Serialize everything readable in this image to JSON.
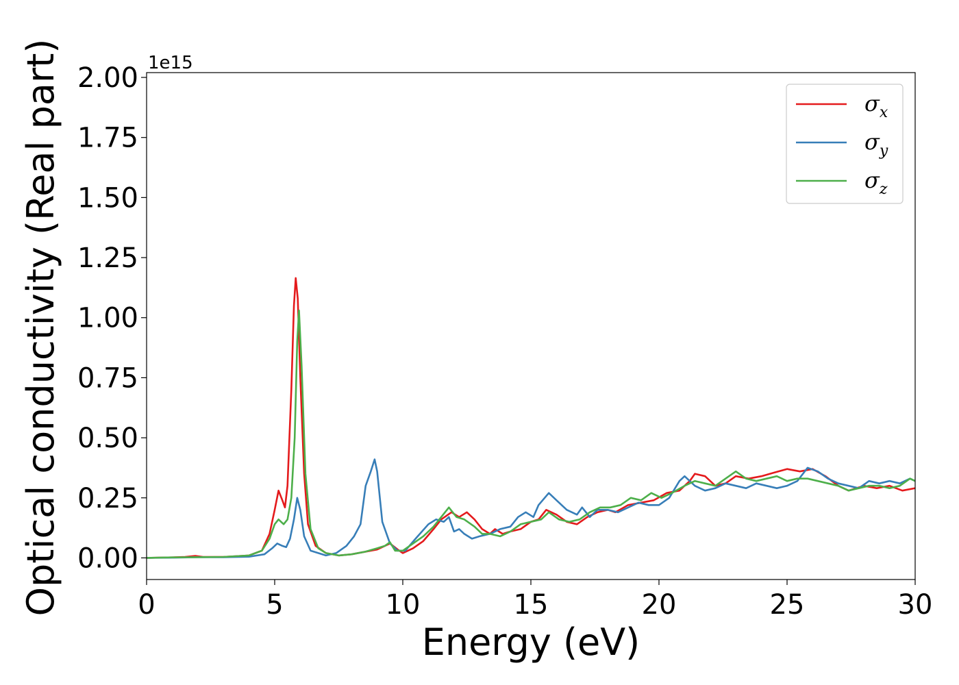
{
  "chart_data": {
    "type": "line",
    "title": "",
    "xlabel": "Energy (eV)",
    "ylabel": "Optical conductivity (Real part)",
    "offset_label": "1e15",
    "xlim": [
      0,
      30
    ],
    "ylim": [
      -0.09,
      2.02
    ],
    "xticks": [
      0,
      5,
      10,
      15,
      20,
      25,
      30
    ],
    "xtick_labels": [
      "0",
      "5",
      "10",
      "15",
      "20",
      "25",
      "30"
    ],
    "yticks": [
      0,
      0.25,
      0.5,
      0.75,
      1.0,
      1.25,
      1.5,
      1.75,
      2.0
    ],
    "ytick_labels": [
      "0.00",
      "0.25",
      "0.50",
      "0.75",
      "1.00",
      "1.25",
      "1.50",
      "1.75",
      "2.00"
    ],
    "grid": false,
    "legend_position": "top-right",
    "series": [
      {
        "name": "σ",
        "subscript": "x",
        "color": "#e41a1c",
        "points": [
          [
            0,
            0
          ],
          [
            1,
            0.002
          ],
          [
            1.5,
            0.004
          ],
          [
            1.9,
            0.008
          ],
          [
            2.2,
            0.004
          ],
          [
            3,
            0.004
          ],
          [
            4,
            0.01
          ],
          [
            4.5,
            0.03
          ],
          [
            4.8,
            0.1
          ],
          [
            5.0,
            0.2
          ],
          [
            5.15,
            0.28
          ],
          [
            5.3,
            0.24
          ],
          [
            5.4,
            0.21
          ],
          [
            5.5,
            0.3
          ],
          [
            5.65,
            0.7
          ],
          [
            5.75,
            1.05
          ],
          [
            5.82,
            1.165
          ],
          [
            5.9,
            1.08
          ],
          [
            6.0,
            0.75
          ],
          [
            6.15,
            0.35
          ],
          [
            6.3,
            0.14
          ],
          [
            6.6,
            0.05
          ],
          [
            7,
            0.02
          ],
          [
            7.5,
            0.01
          ],
          [
            8,
            0.015
          ],
          [
            8.5,
            0.025
          ],
          [
            9,
            0.035
          ],
          [
            9.5,
            0.06
          ],
          [
            9.8,
            0.035
          ],
          [
            10,
            0.02
          ],
          [
            10.4,
            0.04
          ],
          [
            10.8,
            0.07
          ],
          [
            11.2,
            0.12
          ],
          [
            11.5,
            0.16
          ],
          [
            11.9,
            0.19
          ],
          [
            12.2,
            0.17
          ],
          [
            12.5,
            0.19
          ],
          [
            12.8,
            0.16
          ],
          [
            13.1,
            0.12
          ],
          [
            13.4,
            0.1
          ],
          [
            13.6,
            0.12
          ],
          [
            13.9,
            0.1
          ],
          [
            14.2,
            0.11
          ],
          [
            14.6,
            0.12
          ],
          [
            15,
            0.15
          ],
          [
            15.3,
            0.16
          ],
          [
            15.6,
            0.2
          ],
          [
            16,
            0.18
          ],
          [
            16.4,
            0.15
          ],
          [
            16.8,
            0.14
          ],
          [
            17.2,
            0.17
          ],
          [
            17.6,
            0.19
          ],
          [
            18,
            0.2
          ],
          [
            18.3,
            0.19
          ],
          [
            18.8,
            0.22
          ],
          [
            19.3,
            0.23
          ],
          [
            19.8,
            0.24
          ],
          [
            20.3,
            0.27
          ],
          [
            20.8,
            0.28
          ],
          [
            21.2,
            0.32
          ],
          [
            21.4,
            0.35
          ],
          [
            21.8,
            0.34
          ],
          [
            22.2,
            0.3
          ],
          [
            22.6,
            0.31
          ],
          [
            23,
            0.34
          ],
          [
            23.5,
            0.33
          ],
          [
            24,
            0.34
          ],
          [
            24.5,
            0.355
          ],
          [
            25,
            0.37
          ],
          [
            25.5,
            0.36
          ],
          [
            26,
            0.37
          ],
          [
            26.5,
            0.34
          ],
          [
            27,
            0.3
          ],
          [
            27.4,
            0.28
          ],
          [
            28,
            0.3
          ],
          [
            28.5,
            0.29
          ],
          [
            29,
            0.3
          ],
          [
            29.5,
            0.28
          ],
          [
            30,
            0.29
          ]
        ]
      },
      {
        "name": "σ",
        "subscript": "y",
        "color": "#377eb8",
        "points": [
          [
            0,
            0
          ],
          [
            1,
            0.001
          ],
          [
            2,
            0.003
          ],
          [
            3,
            0.003
          ],
          [
            4,
            0.005
          ],
          [
            4.6,
            0.015
          ],
          [
            4.9,
            0.04
          ],
          [
            5.1,
            0.06
          ],
          [
            5.3,
            0.05
          ],
          [
            5.45,
            0.045
          ],
          [
            5.6,
            0.08
          ],
          [
            5.75,
            0.16
          ],
          [
            5.88,
            0.25
          ],
          [
            6.0,
            0.2
          ],
          [
            6.15,
            0.09
          ],
          [
            6.4,
            0.03
          ],
          [
            7,
            0.01
          ],
          [
            7.4,
            0.02
          ],
          [
            7.8,
            0.05
          ],
          [
            8.1,
            0.09
          ],
          [
            8.35,
            0.14
          ],
          [
            8.55,
            0.3
          ],
          [
            8.75,
            0.36
          ],
          [
            8.9,
            0.41
          ],
          [
            9.0,
            0.36
          ],
          [
            9.2,
            0.15
          ],
          [
            9.5,
            0.06
          ],
          [
            9.8,
            0.03
          ],
          [
            10.1,
            0.03
          ],
          [
            10.5,
            0.08
          ],
          [
            11,
            0.14
          ],
          [
            11.3,
            0.16
          ],
          [
            11.6,
            0.15
          ],
          [
            11.8,
            0.17
          ],
          [
            12.0,
            0.11
          ],
          [
            12.2,
            0.12
          ],
          [
            12.4,
            0.1
          ],
          [
            12.7,
            0.08
          ],
          [
            13,
            0.09
          ],
          [
            13.4,
            0.1
          ],
          [
            13.8,
            0.12
          ],
          [
            14.2,
            0.13
          ],
          [
            14.5,
            0.17
          ],
          [
            14.8,
            0.19
          ],
          [
            15.1,
            0.17
          ],
          [
            15.3,
            0.22
          ],
          [
            15.7,
            0.27
          ],
          [
            16.0,
            0.24
          ],
          [
            16.4,
            0.2
          ],
          [
            16.8,
            0.18
          ],
          [
            17.0,
            0.21
          ],
          [
            17.3,
            0.17
          ],
          [
            17.6,
            0.2
          ],
          [
            18,
            0.2
          ],
          [
            18.4,
            0.19
          ],
          [
            18.8,
            0.21
          ],
          [
            19.2,
            0.23
          ],
          [
            19.6,
            0.22
          ],
          [
            20.0,
            0.22
          ],
          [
            20.4,
            0.25
          ],
          [
            20.8,
            0.32
          ],
          [
            21.0,
            0.34
          ],
          [
            21.4,
            0.3
          ],
          [
            21.8,
            0.28
          ],
          [
            22.2,
            0.29
          ],
          [
            22.6,
            0.31
          ],
          [
            23.0,
            0.3
          ],
          [
            23.4,
            0.29
          ],
          [
            23.8,
            0.31
          ],
          [
            24.2,
            0.3
          ],
          [
            24.6,
            0.29
          ],
          [
            25,
            0.3
          ],
          [
            25.4,
            0.32
          ],
          [
            25.8,
            0.375
          ],
          [
            26.2,
            0.36
          ],
          [
            26.6,
            0.33
          ],
          [
            27,
            0.31
          ],
          [
            27.4,
            0.3
          ],
          [
            27.8,
            0.29
          ],
          [
            28.2,
            0.32
          ],
          [
            28.6,
            0.31
          ],
          [
            29,
            0.32
          ],
          [
            29.4,
            0.31
          ],
          [
            29.8,
            0.33
          ],
          [
            30,
            0.32
          ]
        ]
      },
      {
        "name": "σ",
        "subscript": "z",
        "color": "#4daf4a",
        "points": [
          [
            0,
            0
          ],
          [
            1,
            0.002
          ],
          [
            2,
            0.003
          ],
          [
            3,
            0.004
          ],
          [
            4,
            0.01
          ],
          [
            4.5,
            0.03
          ],
          [
            4.8,
            0.08
          ],
          [
            5.0,
            0.14
          ],
          [
            5.15,
            0.16
          ],
          [
            5.35,
            0.14
          ],
          [
            5.5,
            0.16
          ],
          [
            5.65,
            0.25
          ],
          [
            5.78,
            0.5
          ],
          [
            5.88,
            0.9
          ],
          [
            5.95,
            1.03
          ],
          [
            6.05,
            0.8
          ],
          [
            6.2,
            0.35
          ],
          [
            6.4,
            0.12
          ],
          [
            6.7,
            0.04
          ],
          [
            7,
            0.02
          ],
          [
            7.5,
            0.01
          ],
          [
            8,
            0.015
          ],
          [
            8.5,
            0.025
          ],
          [
            9,
            0.04
          ],
          [
            9.3,
            0.05
          ],
          [
            9.5,
            0.065
          ],
          [
            9.7,
            0.03
          ],
          [
            10,
            0.03
          ],
          [
            10.4,
            0.06
          ],
          [
            10.8,
            0.09
          ],
          [
            11.2,
            0.13
          ],
          [
            11.5,
            0.17
          ],
          [
            11.8,
            0.21
          ],
          [
            12.1,
            0.17
          ],
          [
            12.4,
            0.16
          ],
          [
            12.8,
            0.13
          ],
          [
            13.1,
            0.1
          ],
          [
            13.4,
            0.1
          ],
          [
            13.8,
            0.09
          ],
          [
            14.2,
            0.11
          ],
          [
            14.6,
            0.14
          ],
          [
            15,
            0.15
          ],
          [
            15.4,
            0.16
          ],
          [
            15.7,
            0.19
          ],
          [
            16.1,
            0.16
          ],
          [
            16.5,
            0.15
          ],
          [
            16.9,
            0.16
          ],
          [
            17.3,
            0.19
          ],
          [
            17.7,
            0.21
          ],
          [
            18.1,
            0.21
          ],
          [
            18.5,
            0.22
          ],
          [
            18.9,
            0.25
          ],
          [
            19.3,
            0.24
          ],
          [
            19.7,
            0.27
          ],
          [
            20.1,
            0.25
          ],
          [
            20.5,
            0.27
          ],
          [
            21,
            0.3
          ],
          [
            21.4,
            0.32
          ],
          [
            21.8,
            0.31
          ],
          [
            22.2,
            0.3
          ],
          [
            22.6,
            0.33
          ],
          [
            23,
            0.36
          ],
          [
            23.4,
            0.33
          ],
          [
            23.8,
            0.32
          ],
          [
            24.2,
            0.33
          ],
          [
            24.6,
            0.34
          ],
          [
            25,
            0.32
          ],
          [
            25.4,
            0.33
          ],
          [
            25.8,
            0.33
          ],
          [
            26.2,
            0.32
          ],
          [
            26.6,
            0.31
          ],
          [
            27,
            0.3
          ],
          [
            27.4,
            0.28
          ],
          [
            27.8,
            0.29
          ],
          [
            28.2,
            0.3
          ],
          [
            28.6,
            0.3
          ],
          [
            29,
            0.29
          ],
          [
            29.4,
            0.3
          ],
          [
            29.8,
            0.33
          ],
          [
            30,
            0.32
          ]
        ]
      }
    ]
  }
}
